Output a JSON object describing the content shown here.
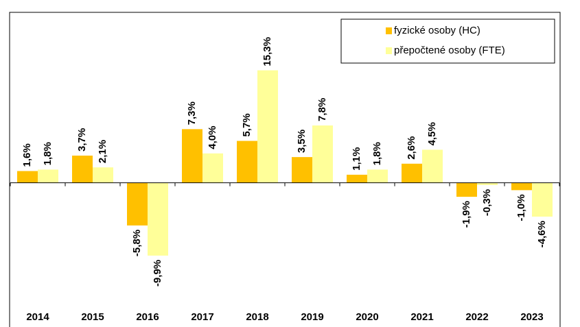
{
  "chart_data": {
    "type": "bar",
    "categories": [
      "2014",
      "2015",
      "2016",
      "2017",
      "2018",
      "2019",
      "2020",
      "2021",
      "2022",
      "2023"
    ],
    "series": [
      {
        "name": "fyzické osoby (HC)",
        "color": "#ffc000",
        "values": [
          1.6,
          3.7,
          -5.8,
          7.3,
          5.7,
          3.5,
          1.1,
          2.6,
          -1.9,
          -1.0
        ],
        "value_labels": [
          "1,6%",
          "3,7%",
          "-5,8%",
          "7,3%",
          "5,7%",
          "3,5%",
          "1,1%",
          "2,6%",
          "-1,9%",
          "-1,0%"
        ]
      },
      {
        "name": "přepočtené osoby (FTE)",
        "color": "#ffff99",
        "values": [
          1.8,
          2.1,
          -9.9,
          4.0,
          15.3,
          7.8,
          1.8,
          4.5,
          -0.3,
          -4.6
        ],
        "value_labels": [
          "1,8%",
          "2,1%",
          "-9,9%",
          "4,0%",
          "15,3%",
          "7,8%",
          "1,8%",
          "4,5%",
          "-0,3%",
          "-4,6%"
        ]
      }
    ],
    "ylim": [
      -17,
      23
    ],
    "legend": "top-right"
  }
}
